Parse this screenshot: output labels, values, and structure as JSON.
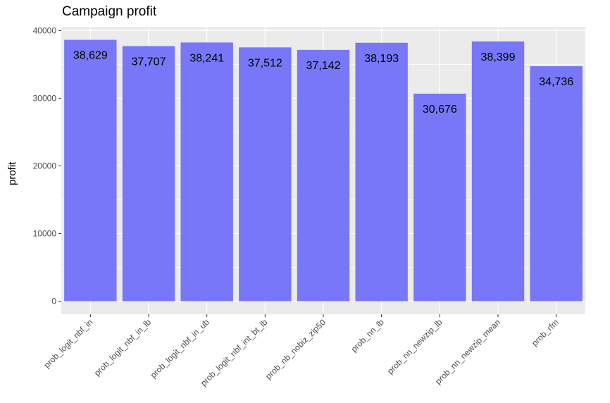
{
  "chart_data": {
    "type": "bar",
    "title": "Campaign profit",
    "xlabel": "",
    "ylabel": "profit",
    "categories": [
      "prob_logit_nbf_in",
      "prob_logit_nbf_in_lb",
      "prob_logit_nbf_in_ub",
      "prob_logit_nbf_int_bt_lb",
      "prob_nb_nobiz_zip50",
      "prob_nn_lb",
      "prob_nn_newzip_lb",
      "prob_nn_newzip_mean",
      "prob_rfm"
    ],
    "values": [
      38629,
      37707,
      38241,
      37512,
      37142,
      38193,
      30676,
      38399,
      34736
    ],
    "data_labels": [
      "38,629",
      "37,707",
      "38,241",
      "37,512",
      "37,142",
      "38,193",
      "30,676",
      "38,399",
      "34,736"
    ],
    "y_ticks": [
      0,
      10000,
      20000,
      30000,
      40000
    ],
    "y_tick_labels": [
      "0",
      "10000",
      "20000",
      "30000",
      "40000"
    ],
    "ylim": [
      -1931,
      40563
    ],
    "grid": true,
    "legend": "none",
    "colors": {
      "bar": "#7777f7",
      "panel": "#ebebeb",
      "grid": "#ffffff"
    }
  }
}
